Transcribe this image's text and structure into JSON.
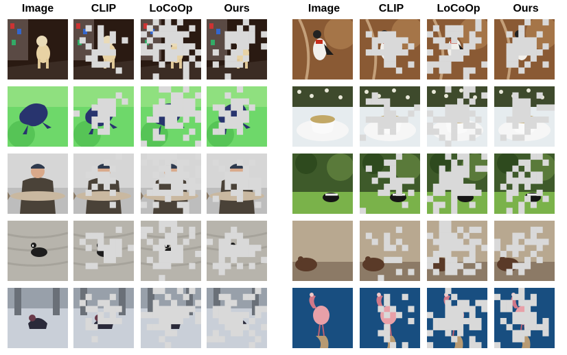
{
  "columns": [
    "Image",
    "CLIP",
    "LoCoOp",
    "Ours"
  ],
  "colors": {
    "mask_patch": "#d9d9d9",
    "background": "#ffffff"
  },
  "panels": [
    {
      "side": "left",
      "rows": [
        {
          "subject": "dog"
        },
        {
          "subject": "frog-on-green"
        },
        {
          "subject": "man-with-fish"
        },
        {
          "subject": "coot-on-water"
        },
        {
          "subject": "dog-in-snow"
        }
      ]
    },
    {
      "side": "right",
      "rows": [
        {
          "subject": "finch-on-branch"
        },
        {
          "subject": "teacup"
        },
        {
          "subject": "skunk-on-grass"
        },
        {
          "subject": "toad"
        },
        {
          "subject": "spoonbill"
        }
      ]
    }
  ]
}
